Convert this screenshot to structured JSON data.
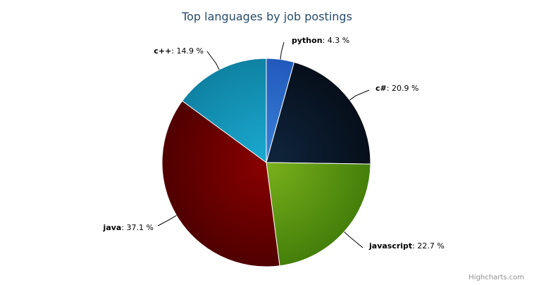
{
  "chart_data": {
    "type": "pie",
    "title": "Top languages by job postings",
    "unit": "%",
    "slices": [
      {
        "name": "python",
        "value": 4.3,
        "label": "4.3 %",
        "color_light": "#3a82d8",
        "color_dark": "#1f55b8"
      },
      {
        "name": "c#",
        "value": 20.9,
        "label": "20.9 %",
        "color_light": "#10263f",
        "color_dark": "#050c16"
      },
      {
        "name": "javascript",
        "value": 22.7,
        "label": "22.7 %",
        "color_light": "#7ab11c",
        "color_dark": "#3f7a08"
      },
      {
        "name": "java",
        "value": 37.1,
        "label": "37.1 %",
        "color_light": "#8a0000",
        "color_dark": "#4a0000"
      },
      {
        "name": "c++",
        "value": 14.9,
        "label": "14.9 %",
        "color_light": "#1aaad0",
        "color_dark": "#0e7e9e"
      }
    ],
    "credits": "Highcharts.com"
  }
}
